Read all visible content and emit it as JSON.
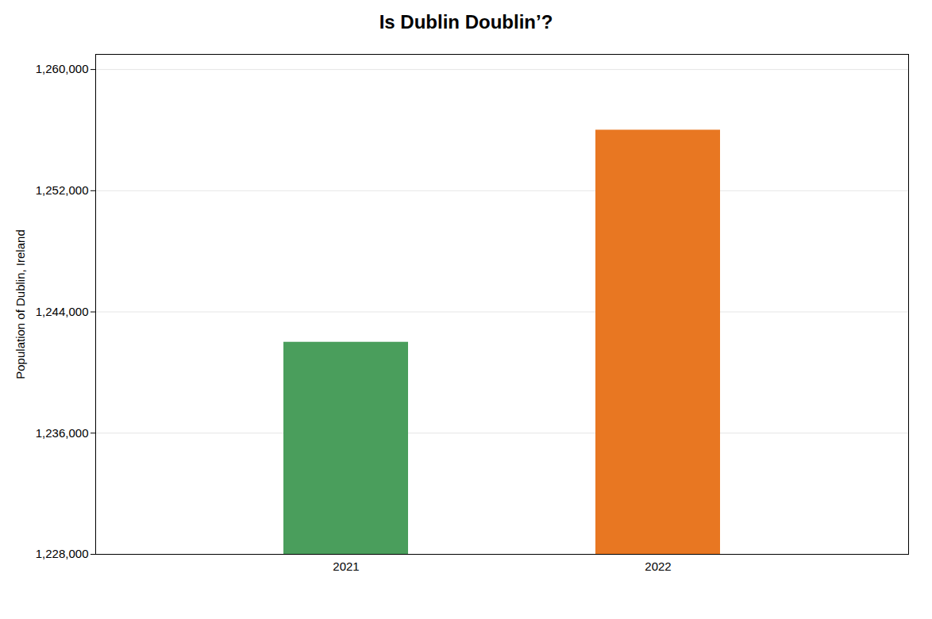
{
  "chart_data": {
    "type": "bar",
    "title": "Is Dublin Doublin’?",
    "ylabel": "Population of Dublin, Ireland",
    "categories": [
      "2021",
      "2022"
    ],
    "values": [
      1242000,
      1256000
    ],
    "colors": [
      "#4a9e5c",
      "#e87722"
    ],
    "ylim": [
      1228000,
      1261000
    ],
    "yticks": [
      {
        "value": 1228000,
        "label": "1,228,000"
      },
      {
        "value": 1236000,
        "label": "1,236,000"
      },
      {
        "value": 1244000,
        "label": "1,244,000"
      },
      {
        "value": 1252000,
        "label": "1,252,000"
      },
      {
        "value": 1260000,
        "label": "1,260,000"
      }
    ],
    "grid": true
  }
}
